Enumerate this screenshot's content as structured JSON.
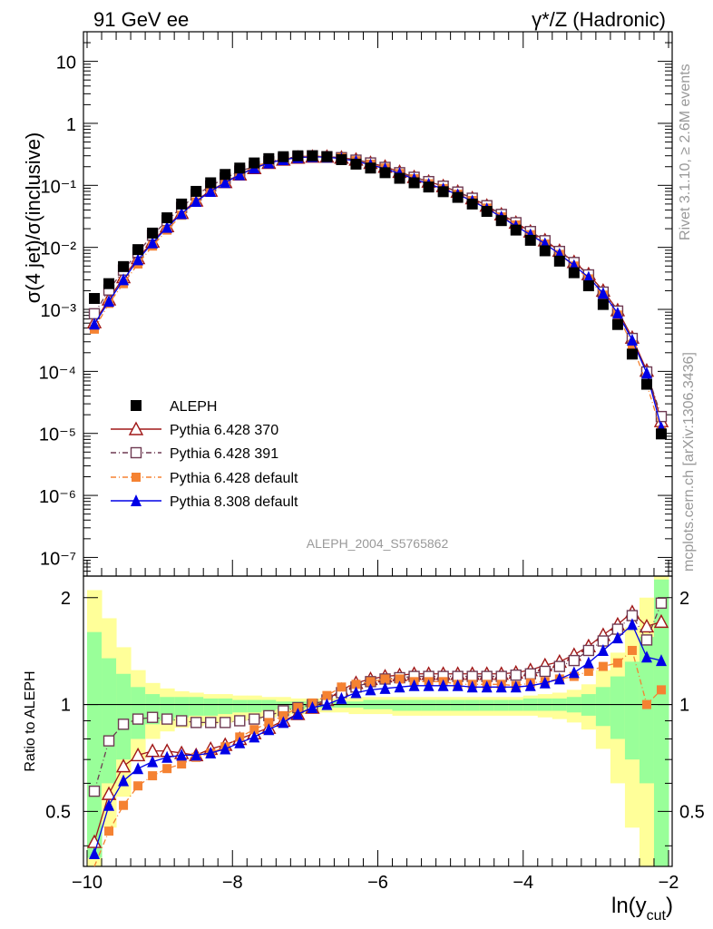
{
  "header": {
    "left": "91 GeV ee",
    "right": "γ*/Z (Hadronic)"
  },
  "side_text": {
    "rivet": "Rivet 3.1.10, ≥ 2.6M events",
    "mcplots": "mcplots.cern.ch [arXiv:1306.3436]"
  },
  "analysis_label": "ALEPH_2004_S5765862",
  "colors": {
    "data": "#000000",
    "p370": "#a01818",
    "p391": "#6e3a52",
    "pdef": "#f58232",
    "p8": "#0000e6",
    "band_inner": "#99ff99",
    "band_outer": "#ffff99"
  },
  "chart_data": [
    {
      "type": "scatter",
      "panel": "main",
      "ylabel": "σ(4 jet)/σ(inclusive)",
      "xlim": [
        -10.05,
        -1.95
      ],
      "ylim": [
        5e-08,
        30
      ],
      "yscale": "log",
      "ytick_labels": [
        "10⁻⁷",
        "10⁻⁶",
        "10⁻⁵",
        "10⁻⁴",
        "10⁻³",
        "10⁻²",
        "10⁻¹",
        "1",
        "10"
      ],
      "x": [
        -9.9,
        -9.7,
        -9.5,
        -9.3,
        -9.1,
        -8.9,
        -8.7,
        -8.5,
        -8.3,
        -8.1,
        -7.9,
        -7.7,
        -7.5,
        -7.3,
        -7.1,
        -6.9,
        -6.7,
        -6.5,
        -6.3,
        -6.1,
        -5.9,
        -5.7,
        -5.5,
        -5.3,
        -5.1,
        -4.9,
        -4.7,
        -4.5,
        -4.3,
        -4.1,
        -3.9,
        -3.7,
        -3.5,
        -3.3,
        -3.1,
        -2.9,
        -2.7,
        -2.5,
        -2.3,
        -2.1
      ],
      "legend": [
        "ALEPH",
        "Pythia 6.428 370",
        "Pythia 6.428 391",
        "Pythia 6.428 default",
        "Pythia 8.308 default"
      ],
      "series": [
        {
          "name": "ALEPH",
          "values": [
            0.0015,
            0.0026,
            0.0049,
            0.0092,
            0.017,
            0.03,
            0.05,
            0.08,
            0.11,
            0.15,
            0.19,
            0.23,
            0.27,
            0.29,
            0.3,
            0.3,
            0.29,
            0.26,
            0.22,
            0.19,
            0.16,
            0.13,
            0.11,
            0.094,
            0.079,
            0.064,
            0.05,
            0.038,
            0.027,
            0.019,
            0.013,
            0.0088,
            0.006,
            0.0039,
            0.0024,
            0.0012,
            0.00057,
            0.00019,
            6.2e-05,
            9.8e-06
          ]
        },
        {
          "name": "Pythia 6.428 370",
          "values": [
            0.00062,
            0.00145,
            0.0033,
            0.0067,
            0.0124,
            0.022,
            0.036,
            0.057,
            0.082,
            0.113,
            0.15,
            0.19,
            0.23,
            0.26,
            0.28,
            0.29,
            0.29,
            0.28,
            0.26,
            0.23,
            0.2,
            0.165,
            0.136,
            0.115,
            0.097,
            0.079,
            0.062,
            0.047,
            0.034,
            0.025,
            0.018,
            0.013,
            0.0088,
            0.0058,
            0.0037,
            0.002,
            0.00097,
            0.00035,
            0.000103,
            1.58e-05
          ]
        },
        {
          "name": "Pythia 6.428 391",
          "values": [
            0.00085,
            0.00205,
            0.0043,
            0.0083,
            0.0157,
            0.027,
            0.044,
            0.07,
            0.098,
            0.13,
            0.17,
            0.2,
            0.24,
            0.27,
            0.29,
            0.3,
            0.29,
            0.28,
            0.255,
            0.23,
            0.195,
            0.16,
            0.135,
            0.115,
            0.097,
            0.078,
            0.062,
            0.047,
            0.034,
            0.025,
            0.018,
            0.0128,
            0.0086,
            0.0057,
            0.0036,
            0.0019,
            0.00094,
            0.00034,
            9.8e-05,
            1.87e-05
          ]
        },
        {
          "name": "Pythia 6.428 default",
          "values": [
            0.00048,
            0.00125,
            0.0026,
            0.0054,
            0.0105,
            0.019,
            0.033,
            0.054,
            0.08,
            0.114,
            0.152,
            0.2,
            0.24,
            0.27,
            0.29,
            0.3,
            0.29,
            0.28,
            0.25,
            0.22,
            0.19,
            0.155,
            0.128,
            0.106,
            0.089,
            0.072,
            0.057,
            0.043,
            0.031,
            0.023,
            0.016,
            0.0113,
            0.0077,
            0.005,
            0.0031,
            0.0017,
            0.00081,
            0.00027,
            6.2e-05,
            1.08e-05
          ]
        },
        {
          "name": "Pythia 8.308 default",
          "values": [
            0.00058,
            0.00135,
            0.003,
            0.0063,
            0.0118,
            0.021,
            0.035,
            0.055,
            0.08,
            0.111,
            0.148,
            0.19,
            0.23,
            0.26,
            0.28,
            0.29,
            0.285,
            0.27,
            0.245,
            0.215,
            0.185,
            0.155,
            0.127,
            0.105,
            0.088,
            0.071,
            0.056,
            0.042,
            0.031,
            0.022,
            0.016,
            0.0115,
            0.0078,
            0.0051,
            0.0033,
            0.00181,
            0.00087,
            0.00032,
            9.4e-05,
            1.24e-05
          ]
        }
      ]
    },
    {
      "type": "line",
      "panel": "ratio",
      "ylabel": "Ratio to ALEPH",
      "xlabel": "ln(y",
      "xlabel_sub": "cut",
      "xlabel_close": ")",
      "xlim": [
        -10.05,
        -1.95
      ],
      "ylim": [
        0.35,
        2.3
      ],
      "yscale": "log",
      "ytick_labels": [
        "0.5",
        "1",
        "2"
      ],
      "xtick_labels": [
        "−10",
        "−8",
        "−6",
        "−4",
        "−2"
      ],
      "x_edges": [
        -10.0,
        -9.8,
        -9.6,
        -9.4,
        -9.2,
        -9.0,
        -8.8,
        -8.6,
        -8.4,
        -8.2,
        -8.0,
        -7.8,
        -7.6,
        -7.4,
        -7.2,
        -7.0,
        -6.8,
        -6.6,
        -6.4,
        -6.2,
        -6.0,
        -5.8,
        -5.6,
        -5.4,
        -5.2,
        -5.0,
        -4.8,
        -4.6,
        -4.4,
        -4.2,
        -4.0,
        -3.8,
        -3.6,
        -3.4,
        -3.2,
        -3.0,
        -2.8,
        -2.6,
        -2.4,
        -2.2,
        -2.0
      ],
      "x": [
        -9.9,
        -9.7,
        -9.5,
        -9.3,
        -9.1,
        -8.9,
        -8.7,
        -8.5,
        -8.3,
        -8.1,
        -7.9,
        -7.7,
        -7.5,
        -7.3,
        -7.1,
        -6.9,
        -6.7,
        -6.5,
        -6.3,
        -6.1,
        -5.9,
        -5.7,
        -5.5,
        -5.3,
        -5.1,
        -4.9,
        -4.7,
        -4.5,
        -4.3,
        -4.1,
        -3.9,
        -3.7,
        -3.5,
        -3.3,
        -3.1,
        -2.9,
        -2.7,
        -2.5,
        -2.3,
        -2.1
      ],
      "band_inner": {
        "low": [
          0.37,
          0.6,
          0.7,
          0.8,
          0.88,
          0.9,
          0.92,
          0.93,
          0.93,
          0.94,
          0.95,
          0.95,
          0.96,
          0.97,
          0.97,
          0.98,
          0.98,
          0.98,
          0.98,
          0.97,
          0.97,
          0.96,
          0.96,
          0.96,
          0.96,
          0.96,
          0.96,
          0.96,
          0.96,
          0.96,
          0.96,
          0.96,
          0.96,
          0.95,
          0.93,
          0.87,
          0.8,
          0.7,
          0.6,
          0.35
        ],
        "high": [
          1.6,
          1.35,
          1.22,
          1.12,
          1.07,
          1.05,
          1.05,
          1.05,
          1.04,
          1.04,
          1.03,
          1.03,
          1.03,
          1.02,
          1.02,
          1.02,
          1.02,
          1.02,
          1.02,
          1.03,
          1.03,
          1.03,
          1.03,
          1.03,
          1.03,
          1.03,
          1.03,
          1.03,
          1.03,
          1.03,
          1.04,
          1.04,
          1.04,
          1.05,
          1.07,
          1.12,
          1.2,
          1.32,
          1.55,
          2.25
        ]
      },
      "band_outer": {
        "low": [
          0.35,
          0.45,
          0.55,
          0.7,
          0.8,
          0.84,
          0.86,
          0.87,
          0.88,
          0.89,
          0.9,
          0.91,
          0.92,
          0.93,
          0.94,
          0.95,
          0.95,
          0.95,
          0.94,
          0.94,
          0.94,
          0.93,
          0.93,
          0.93,
          0.93,
          0.93,
          0.93,
          0.93,
          0.93,
          0.93,
          0.93,
          0.92,
          0.91,
          0.89,
          0.85,
          0.75,
          0.6,
          0.45,
          0.35,
          0.35
        ],
        "high": [
          2.1,
          1.75,
          1.45,
          1.25,
          1.15,
          1.11,
          1.09,
          1.08,
          1.07,
          1.07,
          1.06,
          1.06,
          1.05,
          1.05,
          1.04,
          1.04,
          1.04,
          1.04,
          1.05,
          1.05,
          1.05,
          1.05,
          1.05,
          1.05,
          1.05,
          1.05,
          1.05,
          1.05,
          1.05,
          1.05,
          1.06,
          1.07,
          1.08,
          1.1,
          1.14,
          1.25,
          1.4,
          1.65,
          2.0,
          2.3
        ]
      },
      "series": [
        {
          "name": "Pythia 6.428 370",
          "values": [
            0.41,
            0.56,
            0.67,
            0.72,
            0.74,
            0.74,
            0.73,
            0.72,
            0.75,
            0.77,
            0.8,
            0.83,
            0.86,
            0.9,
            0.94,
            0.98,
            1.03,
            1.1,
            1.15,
            1.18,
            1.2,
            1.21,
            1.22,
            1.22,
            1.22,
            1.22,
            1.22,
            1.22,
            1.22,
            1.23,
            1.25,
            1.29,
            1.32,
            1.38,
            1.46,
            1.57,
            1.68,
            1.82,
            1.66,
            1.71
          ]
        },
        {
          "name": "Pythia 6.428 391",
          "values": [
            0.57,
            0.79,
            0.88,
            0.91,
            0.92,
            0.91,
            0.9,
            0.89,
            0.89,
            0.89,
            0.9,
            0.91,
            0.93,
            0.96,
            0.98,
            1.0,
            1.03,
            1.08,
            1.12,
            1.16,
            1.18,
            1.19,
            1.2,
            1.2,
            1.2,
            1.2,
            1.2,
            1.2,
            1.2,
            1.21,
            1.22,
            1.24,
            1.28,
            1.33,
            1.42,
            1.51,
            1.63,
            1.78,
            1.52,
            1.93
          ]
        },
        {
          "name": "Pythia 6.428 default",
          "values": [
            0.33,
            0.44,
            0.52,
            0.59,
            0.63,
            0.66,
            0.68,
            0.71,
            0.73,
            0.76,
            0.81,
            0.85,
            0.89,
            0.93,
            0.98,
            1.01,
            1.06,
            1.12,
            1.14,
            1.16,
            1.18,
            1.18,
            1.16,
            1.16,
            1.16,
            1.14,
            1.14,
            1.14,
            1.14,
            1.13,
            1.15,
            1.16,
            1.18,
            1.2,
            1.24,
            1.28,
            1.31,
            1.42,
            1.0,
            1.1
          ]
        },
        {
          "name": "Pythia 8.308 default",
          "values": [
            0.38,
            0.52,
            0.61,
            0.66,
            0.69,
            0.71,
            0.72,
            0.72,
            0.73,
            0.75,
            0.78,
            0.81,
            0.85,
            0.89,
            0.94,
            0.98,
            1.0,
            1.04,
            1.08,
            1.1,
            1.11,
            1.12,
            1.13,
            1.13,
            1.13,
            1.13,
            1.12,
            1.12,
            1.12,
            1.12,
            1.13,
            1.15,
            1.18,
            1.23,
            1.31,
            1.42,
            1.54,
            1.68,
            1.36,
            1.33
          ]
        }
      ]
    }
  ]
}
